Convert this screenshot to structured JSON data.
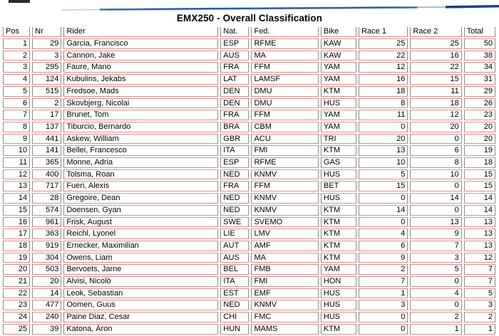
{
  "title": "EMX250 - Overall Classification",
  "colors": {
    "grid_horizontal": "#db8c87",
    "grid_vertical": "#948686",
    "wave_light": "#a8c0e0",
    "wave_mid": "#2f6cb3",
    "wave_dark": "#123f8e"
  },
  "table": {
    "columns": [
      "Pos",
      "Nr",
      "Rider",
      "Nat.",
      "Fed.",
      "Bike",
      "Race 1",
      "Race 2",
      "Total"
    ],
    "rows": [
      [
        "1",
        "29",
        "Garcia, Francisco",
        "ESP",
        "RFME",
        "KAW",
        "25",
        "25",
        "50"
      ],
      [
        "2",
        "3",
        "Cannon, Jake",
        "AUS",
        "MA",
        "KAW",
        "22",
        "16",
        "38"
      ],
      [
        "3",
        "295",
        "Faure, Mano",
        "FRA",
        "FFM",
        "YAM",
        "12",
        "22",
        "34"
      ],
      [
        "4",
        "124",
        "Kubulins, Jekabs",
        "LAT",
        "LAMSF",
        "YAM",
        "16",
        "15",
        "31"
      ],
      [
        "5",
        "515",
        "Fredsoe, Mads",
        "DEN",
        "DMU",
        "KTM",
        "18",
        "11",
        "29"
      ],
      [
        "6",
        "2",
        "Skovbjerg, Nicolai",
        "DEN",
        "DMU",
        "HUS",
        "8",
        "18",
        "26"
      ],
      [
        "7",
        "17",
        "Brunet, Tom",
        "FRA",
        "FFM",
        "YAM",
        "11",
        "12",
        "23"
      ],
      [
        "8",
        "137",
        "Tiburcio, Bernardo",
        "BRA",
        "CBM",
        "YAM",
        "0",
        "20",
        "20"
      ],
      [
        "9",
        "441",
        "Askew, William",
        "GBR",
        "ACU",
        "TRI",
        "20",
        "0",
        "20"
      ],
      [
        "10",
        "141",
        "Bellei, Francesco",
        "ITA",
        "FMI",
        "KTM",
        "13",
        "6",
        "19"
      ],
      [
        "11",
        "365",
        "Monne, Adria",
        "ESP",
        "RFME",
        "GAS",
        "10",
        "8",
        "18"
      ],
      [
        "12",
        "400",
        "Tolsma, Roan",
        "NED",
        "KNMV",
        "HUS",
        "5",
        "10",
        "15"
      ],
      [
        "13",
        "717",
        "Fueri, Alexis",
        "FRA",
        "FFM",
        "BET",
        "15",
        "0",
        "15"
      ],
      [
        "14",
        "28",
        "Gregoire, Dean",
        "NED",
        "KNMV",
        "HUS",
        "0",
        "14",
        "14"
      ],
      [
        "15",
        "574",
        "Doensen, Gyan",
        "NED",
        "KNMV",
        "KTM",
        "14",
        "0",
        "14"
      ],
      [
        "16",
        "961",
        "Frisk, August",
        "SWE",
        "SVEMO",
        "KTM",
        "0",
        "13",
        "13"
      ],
      [
        "17",
        "363",
        "Reichl, Lyonel",
        "LIE",
        "LMV",
        "KTM",
        "4",
        "9",
        "13"
      ],
      [
        "18",
        "919",
        "Ernecker, Maximilian",
        "AUT",
        "AMF",
        "KTM",
        "6",
        "7",
        "13"
      ],
      [
        "19",
        "304",
        "Owens, Liam",
        "AUS",
        "MA",
        "KTM",
        "9",
        "3",
        "12"
      ],
      [
        "20",
        "503",
        "Bervoets, Jarne",
        "BEL",
        "FMB",
        "YAM",
        "2",
        "5",
        "7"
      ],
      [
        "21",
        "20",
        "Alvisi, Nicolò",
        "ITA",
        "FMI",
        "HON",
        "7",
        "0",
        "7"
      ],
      [
        "22",
        "14",
        "Leok, Sebastian",
        "EST",
        "EMF",
        "HUS",
        "1",
        "4",
        "5"
      ],
      [
        "23",
        "477",
        "Oomen, Guus",
        "NED",
        "KNMV",
        "HUS",
        "3",
        "0",
        "3"
      ],
      [
        "24",
        "240",
        "Paine Diaz, Cesar",
        "CHI",
        "FMC",
        "HUS",
        "0",
        "2",
        "2"
      ],
      [
        "25",
        "39",
        "Katona, Áron",
        "HUN",
        "MAMS",
        "KTM",
        "0",
        "1",
        "1"
      ]
    ]
  }
}
